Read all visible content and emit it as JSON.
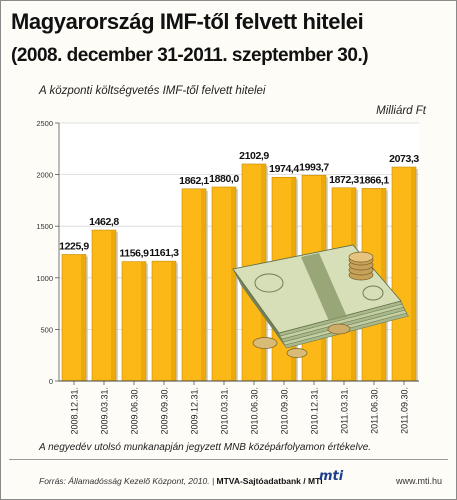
{
  "title_line1": "Magyarország IMF-től felvett hitelei",
  "title_line2": "(2008. december 31-2011. szeptember 30.)",
  "footnote": "A negyedév utolsó munkanapján jegyzett MNB középárfolyamon értékelve.",
  "source": "Forrás: Államadósság Kezelő Központ, 2010.",
  "agency": "MTVA-Sajtóadatbank",
  "agency_suffix": "MTI",
  "logo_text": "mti",
  "website": "www.mti.hu",
  "colors": {
    "bar": "#fbb817",
    "bar_edge": "#c88a00",
    "bar_shade": "#e09c00",
    "grid": "#d8d8d8"
  },
  "chart_data": {
    "type": "bar",
    "title": "A központi költségvetés IMF-től felvett hitelei",
    "ylabel": "Milliárd Ft",
    "categories": [
      "2008.12.31.",
      "2009.03.31.",
      "2009.06.30.",
      "2009.09.30.",
      "2009.12.31.",
      "2010.03.31.",
      "2010.06.30.",
      "2010.09.30.",
      "2010.12.31.",
      "2011.03.31.",
      "2011.06.30.",
      "2011.09.30."
    ],
    "values": [
      1225.9,
      1462.8,
      1156.9,
      1161.3,
      1862.1,
      1880.0,
      2102.9,
      1974.4,
      1993.7,
      1872.3,
      1866.1,
      2073.3
    ],
    "value_labels": [
      "1225,9",
      "1462,8",
      "1156,9",
      "1161,3",
      "1862,1",
      "1880,0",
      "2102,9",
      "1974,4",
      "1993,7",
      "1872,3",
      "1866,1",
      "2073,3"
    ],
    "yticks": [
      "0",
      "500",
      "1000",
      "1500",
      "2000",
      "2500"
    ],
    "ylim": [
      0,
      2500
    ],
    "grid": true
  }
}
